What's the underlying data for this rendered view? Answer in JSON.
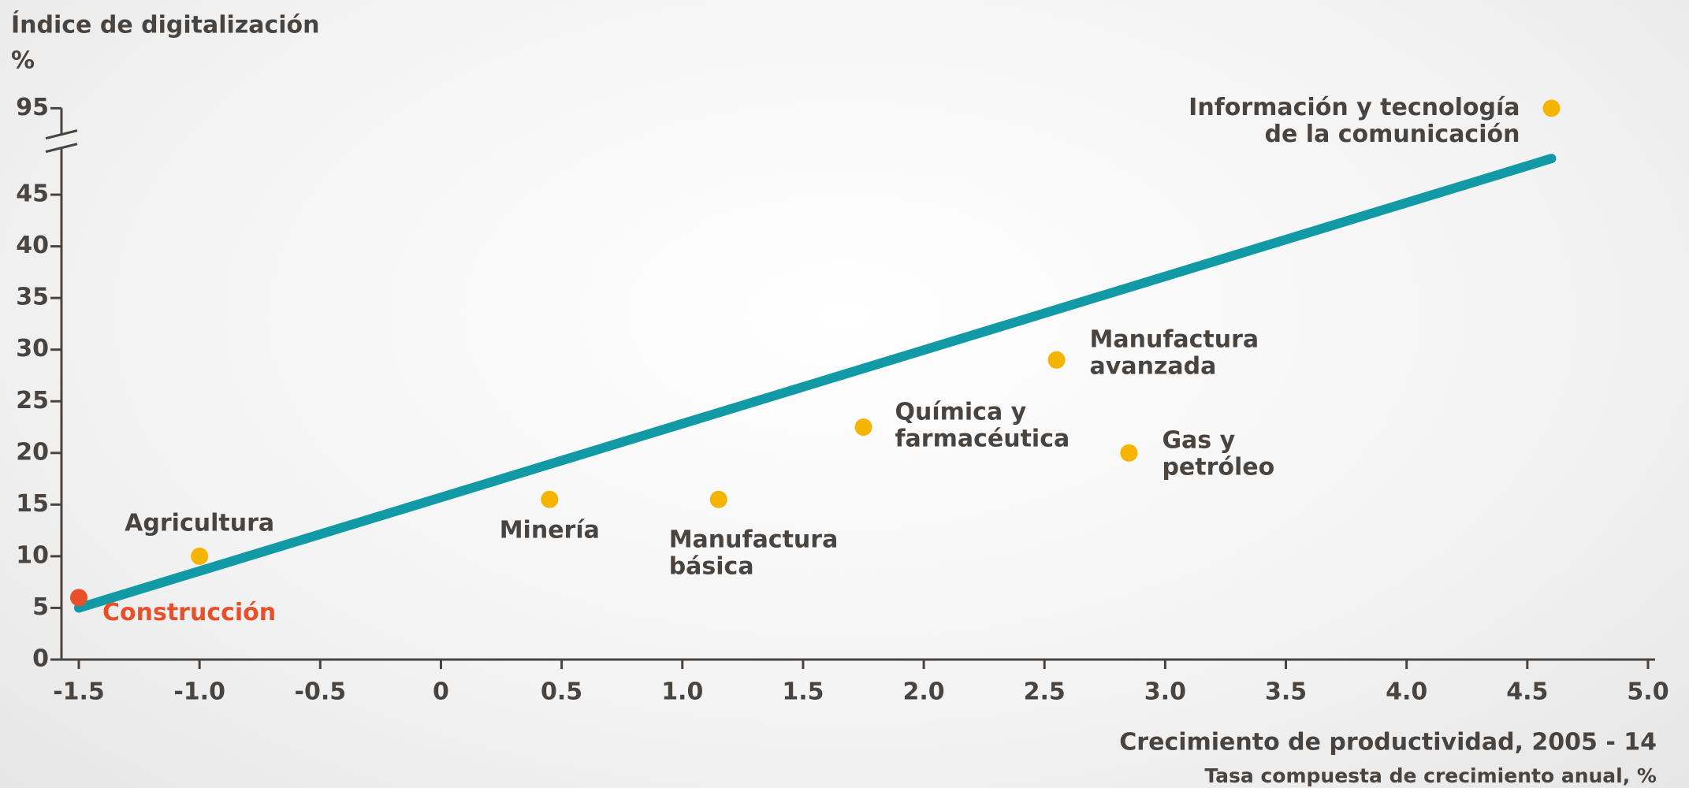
{
  "chart_data": {
    "type": "scatter",
    "title": "Índice de digitalización",
    "y_unit": "%",
    "x_label": "Crecimiento de productividad, 2005 - 14",
    "x_sublabel": "Tasa compuesta de crecimiento anual, %",
    "xlim": [
      -1.5,
      5.0
    ],
    "xticks": [
      {
        "value": -1.5,
        "label": "-1.5"
      },
      {
        "value": -1.0,
        "label": "-1.0"
      },
      {
        "value": -0.5,
        "label": "-0.5"
      },
      0,
      0.5,
      {
        "value": 1.0,
        "label": "1.0"
      },
      1.5,
      {
        "value": 2.0,
        "label": "2.0"
      },
      2.5,
      {
        "value": 3.0,
        "label": "3.0"
      },
      3.5,
      {
        "value": 4.0,
        "label": "4.0"
      },
      4.5,
      {
        "value": 5.0,
        "label": "5.0"
      }
    ],
    "ylim": [
      0,
      95
    ],
    "ybreak": [
      49,
      93
    ],
    "yticks": [
      0,
      5,
      10,
      15,
      20,
      25,
      30,
      35,
      40,
      45,
      95
    ],
    "points": {
      "labels": [
        [
          "Construcción"
        ],
        [
          "Agricultura"
        ],
        [
          "Minería"
        ],
        [
          "Manufactura",
          "básica"
        ],
        [
          "Química y",
          "farmacéutica"
        ],
        [
          "Manufactura",
          "avanzada"
        ],
        [
          "Gas y",
          "petróleo"
        ],
        [
          "Información y tecnología",
          "de la comunicación"
        ]
      ],
      "x": [
        -1.5,
        -1.0,
        0.45,
        1.15,
        1.75,
        2.55,
        2.85,
        4.6
      ],
      "values": [
        6,
        10,
        15.5,
        15.5,
        22.5,
        29,
        20,
        95
      ],
      "colors": [
        "#e8502a",
        "#f5b400",
        "#f5b400",
        "#f5b400",
        "#f5b400",
        "#f5b400",
        "#f5b400",
        "#f5b400"
      ],
      "label_colors": [
        "#e8502a",
        "#4a4440",
        "#4a4440",
        "#4a4440",
        "#4a4440",
        "#4a4440",
        "#4a4440",
        "#4a4440"
      ]
    },
    "trendline": {
      "x": [
        -1.5,
        4.6
      ],
      "values": [
        5,
        48.5
      ],
      "color": "#1199a6"
    }
  }
}
